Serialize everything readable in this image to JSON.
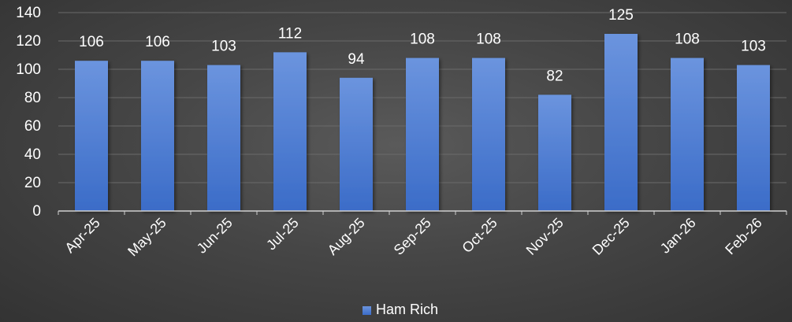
{
  "chart_data": {
    "type": "bar",
    "categories": [
      "Apr-25",
      "May-25",
      "Jun-25",
      "Jul-25",
      "Aug-25",
      "Sep-25",
      "Oct-25",
      "Nov-25",
      "Dec-25",
      "Jan-26",
      "Feb-26"
    ],
    "series": [
      {
        "name": "Ham Rich",
        "values": [
          106,
          106,
          103,
          112,
          94,
          108,
          108,
          82,
          125,
          108,
          103
        ],
        "color": "#4f7fd4"
      }
    ],
    "title": "",
    "xlabel": "",
    "ylabel": "",
    "ylim": [
      0,
      140
    ],
    "yticks": [
      0,
      20,
      40,
      60,
      80,
      100,
      120,
      140
    ],
    "grid": true,
    "data_labels": true,
    "legend": {
      "position": "bottom",
      "entries": [
        "Ham Rich"
      ]
    }
  }
}
